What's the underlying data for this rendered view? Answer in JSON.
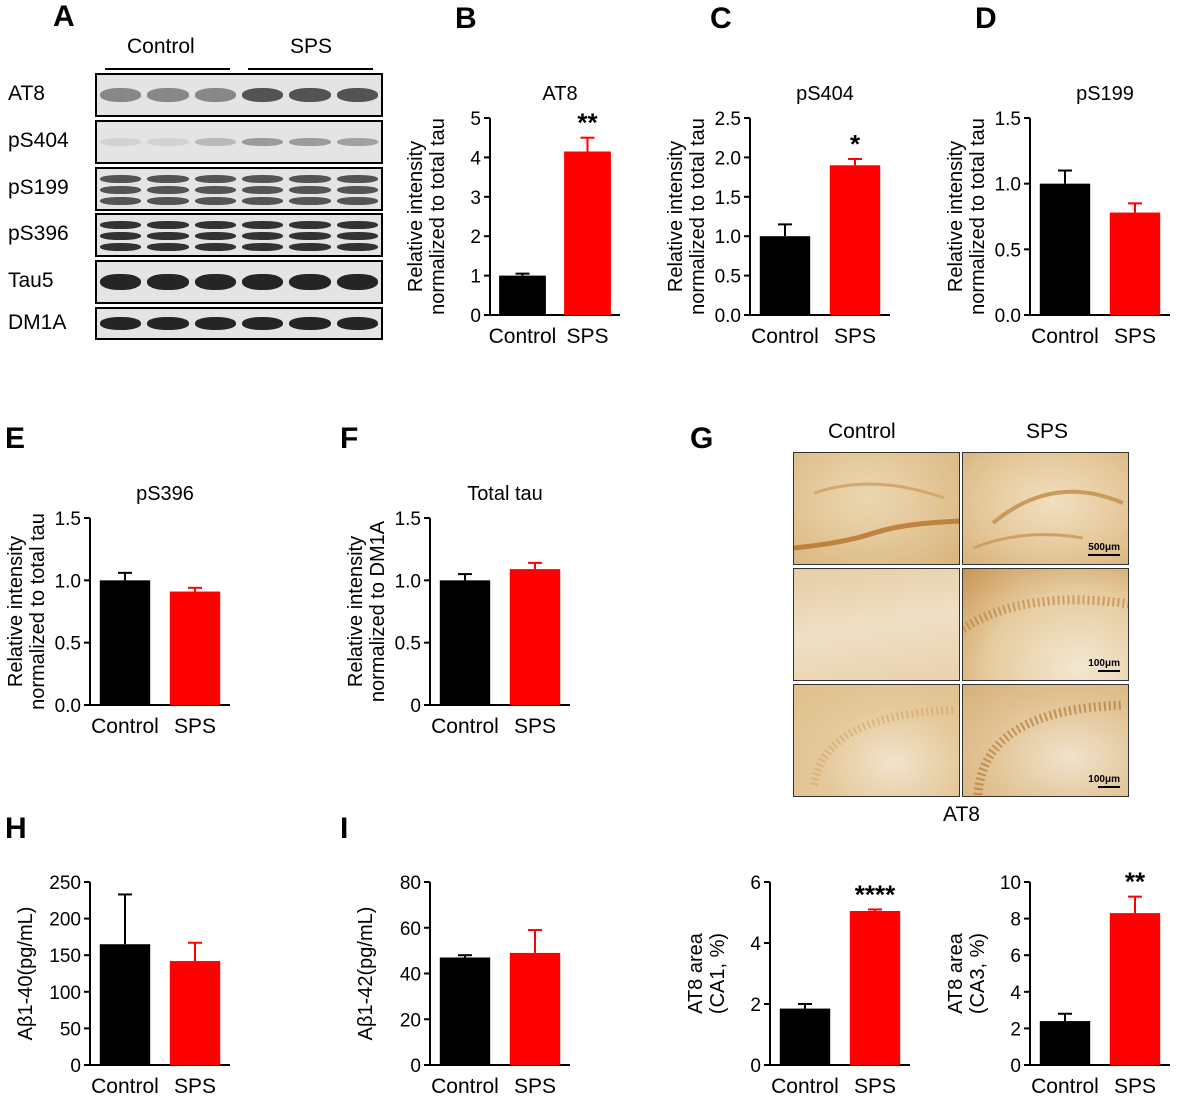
{
  "panel_labels": [
    "A",
    "B",
    "C",
    "D",
    "E",
    "F",
    "G",
    "H",
    "I"
  ],
  "western_blot": {
    "groups": [
      "Control",
      "SPS"
    ],
    "rows": [
      "AT8",
      "pS404",
      "pS199",
      "pS396",
      "Tau5",
      "DM1A"
    ]
  },
  "microscopy": {
    "columns": [
      "Control",
      "SPS"
    ],
    "scale_labels": [
      "500μm",
      "100μm",
      "100μm"
    ],
    "caption": "AT8"
  },
  "colors": {
    "control": "#000000",
    "sps": "#ff0000"
  },
  "chart_data": [
    {
      "id": "B",
      "type": "bar",
      "title": "AT8",
      "categories": [
        "Control",
        "SPS"
      ],
      "values": [
        1.0,
        4.15
      ],
      "errors": [
        0.05,
        0.35
      ],
      "ylabel": [
        "Relative intensity",
        "normalized to total tau"
      ],
      "ylim": [
        0,
        5
      ],
      "yticks": [
        "0",
        "1",
        "2",
        "3",
        "4",
        "5"
      ],
      "annotations": [
        "",
        "**"
      ]
    },
    {
      "id": "C",
      "type": "bar",
      "title": "pS404",
      "categories": [
        "Control",
        "SPS"
      ],
      "values": [
        1.0,
        1.9
      ],
      "errors": [
        0.15,
        0.08
      ],
      "ylabel": [
        "Relative intensity",
        "normalized to total tau"
      ],
      "ylim": [
        0,
        2.5
      ],
      "yticks": [
        "0.0",
        "0.5",
        "1.0",
        "1.5",
        "2.0",
        "2.5"
      ],
      "annotations": [
        "",
        "*"
      ]
    },
    {
      "id": "D",
      "type": "bar",
      "title": "pS199",
      "categories": [
        "Control",
        "SPS"
      ],
      "values": [
        1.0,
        0.78
      ],
      "errors": [
        0.1,
        0.07
      ],
      "ylabel": [
        "Relative intensity",
        "normalized to total tau"
      ],
      "ylim": [
        0,
        1.5
      ],
      "yticks": [
        "0.0",
        "0.5",
        "1.0",
        "1.5"
      ],
      "annotations": [
        "",
        ""
      ]
    },
    {
      "id": "E",
      "type": "bar",
      "title": "pS396",
      "categories": [
        "Control",
        "SPS"
      ],
      "values": [
        1.0,
        0.91
      ],
      "errors": [
        0.06,
        0.03
      ],
      "ylabel": [
        "Relative intensity",
        "normalized to total tau"
      ],
      "ylim": [
        0,
        1.5
      ],
      "yticks": [
        "0.0",
        "0.5",
        "1.0",
        "1.5"
      ],
      "annotations": [
        "",
        ""
      ]
    },
    {
      "id": "F",
      "type": "bar",
      "title": "Total tau",
      "categories": [
        "Control",
        "SPS"
      ],
      "values": [
        1.0,
        1.09
      ],
      "errors": [
        0.05,
        0.05
      ],
      "ylabel": [
        "Relative intensity",
        "normalized to DM1A"
      ],
      "ylim": [
        0,
        1.5
      ],
      "yticks": [
        "0",
        "0.5",
        "1.0",
        "1.5"
      ],
      "annotations": [
        "",
        ""
      ]
    },
    {
      "id": "H",
      "type": "bar",
      "title": "",
      "categories": [
        "Control",
        "SPS"
      ],
      "values": [
        165,
        142
      ],
      "errors": [
        68,
        25
      ],
      "ylabel": [
        "Aβ1-40(pg/mL)"
      ],
      "ylim": [
        0,
        250
      ],
      "yticks": [
        "0",
        "50",
        "100",
        "150",
        "200",
        "250"
      ],
      "annotations": [
        "",
        ""
      ]
    },
    {
      "id": "I",
      "type": "bar",
      "title": "",
      "categories": [
        "Control",
        "SPS"
      ],
      "values": [
        47,
        49
      ],
      "errors": [
        1,
        10
      ],
      "ylabel": [
        "Aβ1-42(pg/mL)"
      ],
      "ylim": [
        0,
        80
      ],
      "yticks": [
        "0",
        "20",
        "40",
        "60",
        "80"
      ],
      "annotations": [
        "",
        ""
      ]
    },
    {
      "id": "G1",
      "type": "bar",
      "title": "",
      "categories": [
        "Control",
        "SPS"
      ],
      "values": [
        1.85,
        5.05
      ],
      "errors": [
        0.15,
        0.05
      ],
      "ylabel": [
        "AT8 area",
        "(CA1, %)"
      ],
      "ylim": [
        0,
        6
      ],
      "yticks": [
        "0",
        "2",
        "4",
        "6"
      ],
      "annotations": [
        "",
        "****"
      ]
    },
    {
      "id": "G2",
      "type": "bar",
      "title": "",
      "categories": [
        "Control",
        "SPS"
      ],
      "values": [
        2.4,
        8.3
      ],
      "errors": [
        0.4,
        0.9
      ],
      "ylabel": [
        "AT8 area",
        "(CA3, %)"
      ],
      "ylim": [
        0,
        10
      ],
      "yticks": [
        "0",
        "2",
        "4",
        "6",
        "8",
        "10"
      ],
      "annotations": [
        "",
        "**"
      ]
    }
  ]
}
